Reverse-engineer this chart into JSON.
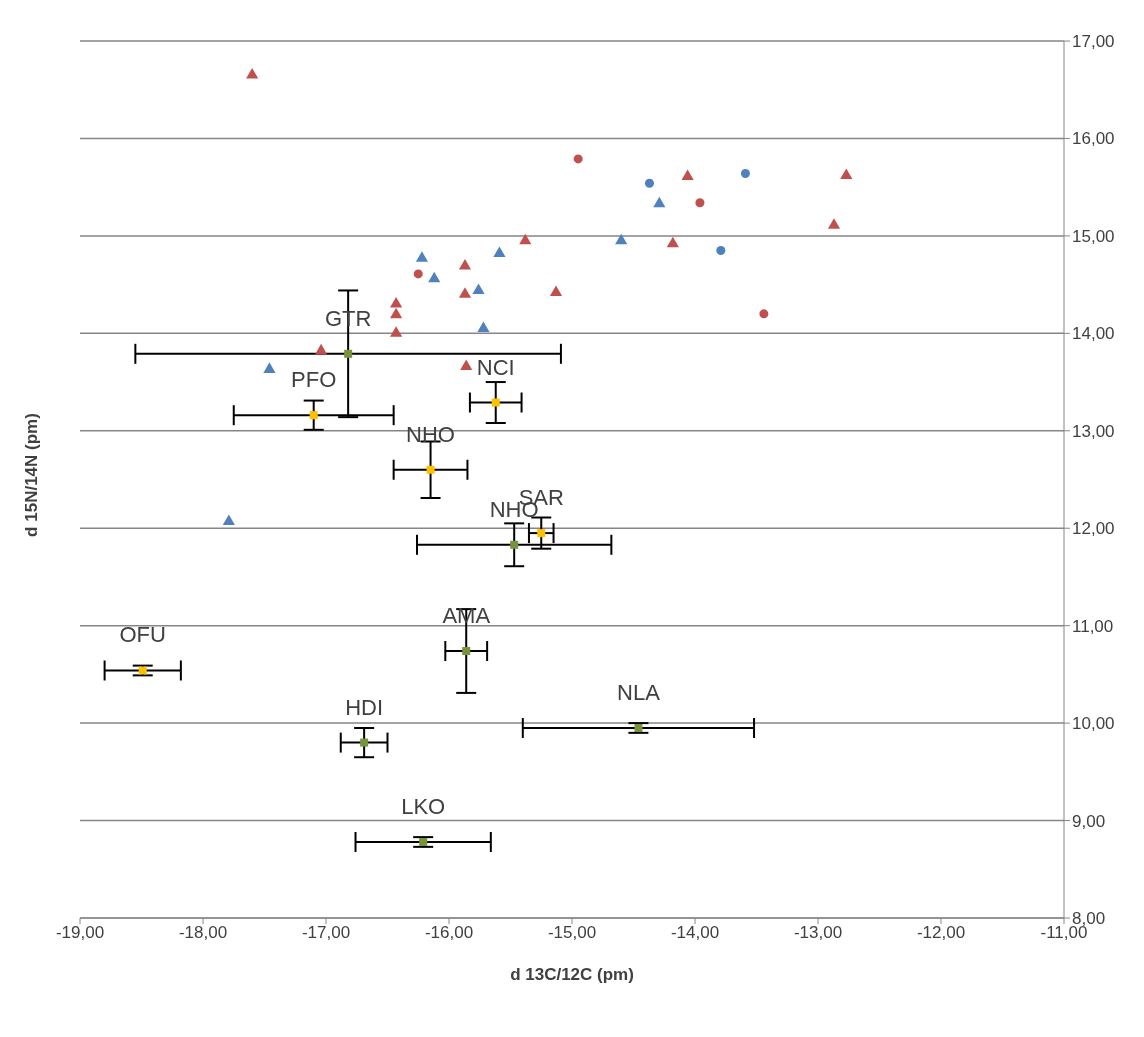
{
  "chart_data": {
    "type": "scatter",
    "xlabel": "d 13C/12C (pm)",
    "ylabel": "d 15N/14N (pm)",
    "xlim": [
      -19,
      -11
    ],
    "ylim": [
      8,
      17
    ],
    "xticks": [
      {
        "value": -19,
        "label": "-19,00"
      },
      {
        "value": -18,
        "label": "-18,00"
      },
      {
        "value": -17,
        "label": "-17,00"
      },
      {
        "value": -16,
        "label": "-16,00"
      },
      {
        "value": -15,
        "label": "-15,00"
      },
      {
        "value": -14,
        "label": "-14,00"
      },
      {
        "value": -13,
        "label": "-13,00"
      },
      {
        "value": -12,
        "label": "-12,00"
      },
      {
        "value": -11,
        "label": "-11,00"
      }
    ],
    "yticks": [
      {
        "value": 8,
        "label": "8,00"
      },
      {
        "value": 9,
        "label": "9,00"
      },
      {
        "value": 10,
        "label": "10,00"
      },
      {
        "value": 11,
        "label": "11,00"
      },
      {
        "value": 12,
        "label": "12,00"
      },
      {
        "value": 13,
        "label": "13,00"
      },
      {
        "value": 14,
        "label": "14,00"
      },
      {
        "value": 15,
        "label": "15,00"
      },
      {
        "value": 16,
        "label": "16,00"
      },
      {
        "value": 17,
        "label": "17,00"
      }
    ],
    "grid": "y",
    "legend": false,
    "series": [
      {
        "color": "#c0504d",
        "marker": "triangle",
        "x": [
          -17.6,
          -16.43,
          -16.43,
          -16.43,
          -17.04,
          -15.87,
          -15.87,
          -15.86,
          -15.38,
          -15.13,
          -14.06,
          -14.18,
          -12.77,
          -12.87
        ],
        "values": [
          16.65,
          14.3,
          14.19,
          14.0,
          13.82,
          14.69,
          14.4,
          13.66,
          14.95,
          14.42,
          15.61,
          14.92,
          15.62,
          15.11
        ]
      },
      {
        "color": "#4f81bd",
        "marker": "triangle",
        "x": [
          -16.22,
          -16.12,
          -15.76,
          -15.59,
          -15.72,
          -17.46,
          -17.79,
          -14.6,
          -14.29
        ],
        "values": [
          14.77,
          14.56,
          14.44,
          14.82,
          14.05,
          13.63,
          12.07,
          14.95,
          15.33
        ]
      },
      {
        "color": "#c0504d",
        "marker": "circle",
        "x": [
          -14.95,
          -16.25,
          -13.96,
          -13.44
        ],
        "values": [
          15.79,
          14.61,
          15.34,
          14.2
        ]
      },
      {
        "color": "#4f81bd",
        "marker": "circle",
        "x": [
          -14.37,
          -13.59,
          -13.79
        ],
        "values": [
          15.54,
          15.64,
          14.85
        ]
      },
      {
        "color": "#ffc000",
        "marker": "square",
        "x": [
          -17.1,
          -15.62,
          -16.15,
          -15.25,
          -18.49
        ],
        "values": [
          13.16,
          13.29,
          12.6,
          11.95,
          10.54
        ],
        "errors": [
          0.15,
          0.21,
          0.29,
          0.16,
          0.05
        ],
        "xerrors": [
          0.65,
          0.21,
          0.3,
          0.1,
          0.31
        ]
      },
      {
        "color": "#77933c",
        "marker": "square",
        "x": [
          -16.82,
          -15.47,
          -15.86,
          -16.69,
          -14.46,
          -16.21
        ],
        "values": [
          13.79,
          11.83,
          10.74,
          9.8,
          9.95,
          8.78
        ],
        "errors": [
          0.65,
          0.22,
          0.43,
          0.15,
          0.05,
          0.05
        ],
        "xerrors": [
          1.73,
          0.79,
          0.17,
          0.19,
          0.94,
          0.55
        ]
      }
    ],
    "annotations": [
      {
        "text": "GTR",
        "x": -16.82,
        "y": 13.79
      },
      {
        "text": "PFO",
        "x": -17.1,
        "y": 13.16
      },
      {
        "text": "NCI",
        "x": -15.62,
        "y": 13.29
      },
      {
        "text": "NHO",
        "x": -16.15,
        "y": 12.6
      },
      {
        "text": "SAR",
        "x": -15.25,
        "y": 11.95
      },
      {
        "text": "NHO",
        "x": -15.47,
        "y": 11.83
      },
      {
        "text": "OFU",
        "x": -18.49,
        "y": 10.54
      },
      {
        "text": "AMA",
        "x": -15.86,
        "y": 10.74
      },
      {
        "text": "HDI",
        "x": -16.69,
        "y": 9.8
      },
      {
        "text": "NLA",
        "x": -14.46,
        "y": 9.95
      },
      {
        "text": "LKO",
        "x": -16.21,
        "y": 8.78
      }
    ]
  }
}
